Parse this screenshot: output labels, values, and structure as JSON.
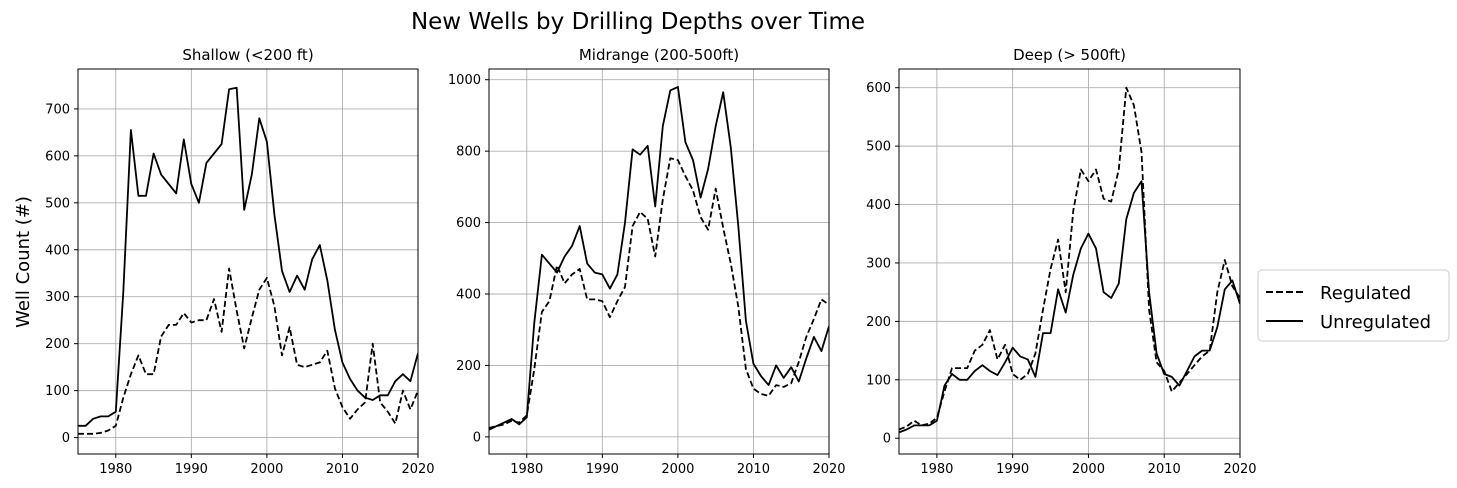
{
  "figure": {
    "suptitle": "New Wells by Drilling Depths over Time",
    "ylabel": "Well Count (#)"
  },
  "legend": {
    "placement": "right-outside",
    "items": [
      {
        "label": "Regulated",
        "style": "dashed"
      },
      {
        "label": "Unregulated",
        "style": "solid"
      }
    ]
  },
  "colors": {
    "line": "#000000",
    "grid": "#b0b0b0"
  },
  "chart_data": [
    {
      "type": "line",
      "title": "Shallow (<200 ft)",
      "xlabel": "",
      "ylabel": "Well Count (#)",
      "xlim": [
        1975,
        2020
      ],
      "ylim": [
        -35,
        785
      ],
      "xticks": [
        1980,
        1990,
        2000,
        2010,
        2020
      ],
      "yticks": [
        0,
        100,
        200,
        300,
        400,
        500,
        600,
        700
      ],
      "grid": true,
      "x": [
        1975,
        1976,
        1977,
        1978,
        1979,
        1980,
        1981,
        1982,
        1983,
        1984,
        1985,
        1986,
        1987,
        1988,
        1989,
        1990,
        1991,
        1992,
        1993,
        1994,
        1995,
        1996,
        1997,
        1998,
        1999,
        2000,
        2001,
        2002,
        2003,
        2004,
        2005,
        2006,
        2007,
        2008,
        2009,
        2010,
        2011,
        2012,
        2013,
        2014,
        2015,
        2016,
        2017,
        2018,
        2019,
        2020
      ],
      "series": [
        {
          "name": "Regulated",
          "style": "dashed",
          "values": [
            8,
            8,
            8,
            10,
            15,
            25,
            85,
            135,
            175,
            135,
            135,
            215,
            240,
            240,
            265,
            245,
            250,
            250,
            295,
            225,
            360,
            270,
            190,
            255,
            315,
            340,
            280,
            175,
            235,
            155,
            150,
            155,
            160,
            185,
            105,
            65,
            40,
            60,
            75,
            200,
            75,
            55,
            30,
            100,
            60,
            100
          ]
        },
        {
          "name": "Unregulated",
          "style": "solid",
          "values": [
            25,
            25,
            40,
            45,
            45,
            55,
            310,
            655,
            515,
            515,
            605,
            560,
            540,
            520,
            635,
            540,
            500,
            585,
            605,
            625,
            742,
            745,
            485,
            560,
            680,
            630,
            475,
            355,
            310,
            345,
            315,
            380,
            410,
            335,
            230,
            160,
            125,
            100,
            85,
            80,
            90,
            90,
            120,
            135,
            120,
            180
          ]
        }
      ]
    },
    {
      "type": "line",
      "title": "Midrange (200-500ft)",
      "xlabel": "",
      "ylabel": "",
      "xlim": [
        1975,
        2020
      ],
      "ylim": [
        -48,
        1030
      ],
      "xticks": [
        1980,
        1990,
        2000,
        2010,
        2020
      ],
      "yticks": [
        0,
        200,
        400,
        600,
        800,
        1000
      ],
      "grid": true,
      "x": [
        1975,
        1976,
        1977,
        1978,
        1979,
        1980,
        1981,
        1982,
        1983,
        1984,
        1985,
        1986,
        1987,
        1988,
        1989,
        1990,
        1991,
        1992,
        1993,
        1994,
        1995,
        1996,
        1997,
        1998,
        1999,
        2000,
        2001,
        2002,
        2003,
        2004,
        2005,
        2006,
        2007,
        2008,
        2009,
        2010,
        2011,
        2012,
        2013,
        2014,
        2015,
        2016,
        2017,
        2018,
        2019,
        2020
      ],
      "series": [
        {
          "name": "Regulated",
          "style": "dashed",
          "values": [
            25,
            30,
            35,
            45,
            40,
            60,
            190,
            350,
            380,
            480,
            430,
            455,
            470,
            385,
            385,
            380,
            335,
            380,
            420,
            590,
            630,
            610,
            505,
            665,
            780,
            775,
            730,
            690,
            615,
            580,
            695,
            585,
            485,
            365,
            190,
            135,
            120,
            115,
            145,
            140,
            150,
            210,
            280,
            330,
            385,
            370
          ]
        },
        {
          "name": "Unregulated",
          "style": "solid",
          "values": [
            20,
            30,
            40,
            50,
            35,
            55,
            320,
            510,
            485,
            460,
            505,
            535,
            590,
            485,
            460,
            455,
            415,
            455,
            600,
            805,
            790,
            815,
            645,
            870,
            970,
            980,
            825,
            775,
            670,
            750,
            870,
            965,
            810,
            590,
            325,
            205,
            170,
            145,
            200,
            165,
            195,
            155,
            220,
            280,
            240,
            310
          ]
        }
      ]
    },
    {
      "type": "line",
      "title": "Deep (> 500ft)",
      "xlabel": "",
      "ylabel": "",
      "xlim": [
        1975,
        2020
      ],
      "ylim": [
        -27,
        632
      ],
      "xticks": [
        1980,
        1990,
        2000,
        2010,
        2020
      ],
      "yticks": [
        0,
        100,
        200,
        300,
        400,
        500,
        600
      ],
      "grid": true,
      "x": [
        1975,
        1976,
        1977,
        1978,
        1979,
        1980,
        1981,
        1982,
        1983,
        1984,
        1985,
        1986,
        1987,
        1988,
        1989,
        1990,
        1991,
        1992,
        1993,
        1994,
        1995,
        1996,
        1997,
        1998,
        1999,
        2000,
        2001,
        2002,
        2003,
        2004,
        2005,
        2006,
        2007,
        2008,
        2009,
        2010,
        2011,
        2012,
        2013,
        2014,
        2015,
        2016,
        2017,
        2018,
        2019,
        2020
      ],
      "series": [
        {
          "name": "Regulated",
          "style": "dashed",
          "values": [
            15,
            20,
            30,
            22,
            25,
            35,
            80,
            120,
            120,
            120,
            150,
            160,
            185,
            135,
            160,
            110,
            100,
            110,
            145,
            220,
            290,
            340,
            250,
            390,
            460,
            440,
            460,
            410,
            405,
            460,
            600,
            570,
            490,
            220,
            130,
            115,
            80,
            95,
            110,
            125,
            140,
            150,
            250,
            305,
            260,
            240
          ]
        },
        {
          "name": "Unregulated",
          "style": "solid",
          "values": [
            10,
            15,
            22,
            22,
            22,
            30,
            90,
            110,
            100,
            100,
            115,
            125,
            115,
            108,
            130,
            155,
            140,
            135,
            105,
            180,
            180,
            255,
            215,
            280,
            325,
            350,
            325,
            250,
            240,
            265,
            375,
            420,
            440,
            250,
            145,
            110,
            105,
            90,
            115,
            140,
            150,
            150,
            190,
            255,
            270,
            230
          ]
        }
      ]
    }
  ]
}
